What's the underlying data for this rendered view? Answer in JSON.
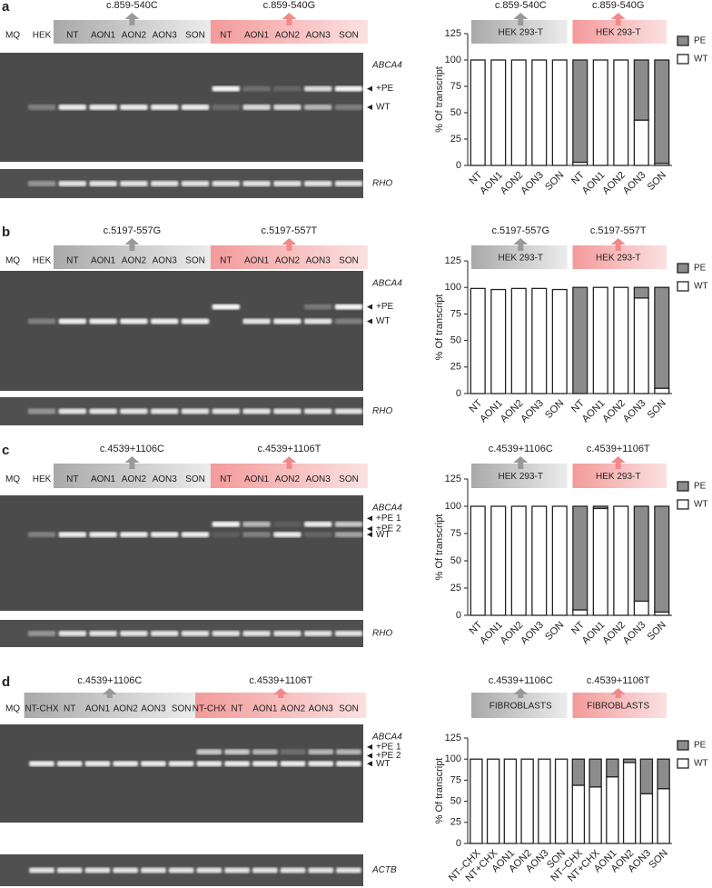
{
  "gels": [
    {
      "letter": "a",
      "lanes": [
        "MQ",
        "HEK",
        "NT",
        "AON1",
        "AON2",
        "AON3",
        "SON",
        "NT",
        "AON1",
        "AON2",
        "AON3",
        "SON"
      ],
      "groups": [
        "c.859-540C",
        "c.859-540G"
      ],
      "gene": "ABCA4",
      "markers": [
        "+PE",
        "WT"
      ],
      "control": "RHO"
    },
    {
      "letter": "b",
      "lanes": [
        "MQ",
        "HEK",
        "NT",
        "AON1",
        "AON2",
        "AON3",
        "SON",
        "NT",
        "AON1",
        "AON2",
        "AON3",
        "SON"
      ],
      "groups": [
        "c.5197-557G",
        "c.5197-557T"
      ],
      "gene": "ABCA4",
      "markers": [
        "+PE",
        "WT"
      ],
      "control": "RHO"
    },
    {
      "letter": "c",
      "lanes": [
        "MQ",
        "HEK",
        "NT",
        "AON1",
        "AON2",
        "AON3",
        "SON",
        "NT",
        "AON1",
        "AON2",
        "AON3",
        "SON"
      ],
      "groups": [
        "c.4539+1106C",
        "c.4539+1106T"
      ],
      "gene": "ABCA4",
      "markers": [
        "+PE 1",
        "+PE 2",
        "WT"
      ],
      "control": "RHO"
    },
    {
      "letter": "d",
      "lanes": [
        "MQ",
        "NT-CHX",
        "NT",
        "AON1",
        "AON2",
        "AON3",
        "SON",
        "NT-CHX",
        "NT",
        "AON1",
        "AON2",
        "AON3",
        "SON"
      ],
      "groups": [
        "c.4539+1106C",
        "c.4539+1106T"
      ],
      "gene": "ABCA4",
      "markers": [
        "+PE 1",
        "+PE 2",
        "WT"
      ],
      "control": "ACTB"
    }
  ],
  "chart_data": [
    {
      "type": "bar",
      "stacked": true,
      "ylabel": "% Of transcript",
      "categories": [
        "NT",
        "AON1",
        "AON2",
        "AON3",
        "SON",
        "NT",
        "AON1",
        "AON2",
        "AON3",
        "SON"
      ],
      "groups": [
        {
          "label": "c.859-540C",
          "name": "HEK 293-T"
        },
        {
          "label": "c.859-540G",
          "name": "HEK 293-T"
        }
      ],
      "series": [
        {
          "name": "PE",
          "color": "#8c8c8c",
          "values": [
            0,
            0,
            0,
            0,
            0,
            97,
            0,
            0,
            57,
            98
          ]
        },
        {
          "name": "WT",
          "color": "#ffffff",
          "values": [
            100,
            100,
            100,
            100,
            100,
            3,
            100,
            100,
            43,
            2
          ]
        }
      ],
      "ylim": [
        0,
        125
      ],
      "yticks": [
        0,
        25,
        50,
        75,
        100,
        125
      ],
      "legend": "right"
    },
    {
      "type": "bar",
      "stacked": true,
      "ylabel": "% Of transcript",
      "categories": [
        "NT",
        "AON1",
        "AON2",
        "AON3",
        "SON",
        "NT",
        "AON1",
        "AON2",
        "AON3",
        "SON"
      ],
      "groups": [
        {
          "label": "c.5197-557G",
          "name": "HEK 293-T"
        },
        {
          "label": "c.5197-557T",
          "name": "HEK 293-T"
        }
      ],
      "series": [
        {
          "name": "PE",
          "color": "#8c8c8c",
          "values": [
            0,
            0,
            0,
            0,
            0,
            100,
            0,
            0,
            10,
            95
          ]
        },
        {
          "name": "WT",
          "color": "#ffffff",
          "values": [
            99,
            98,
            99,
            99,
            98,
            0,
            100,
            100,
            90,
            5
          ]
        }
      ],
      "ylim": [
        0,
        125
      ],
      "yticks": [
        0,
        25,
        50,
        75,
        100,
        125
      ],
      "legend": "right"
    },
    {
      "type": "bar",
      "stacked": true,
      "ylabel": "% Of transcript",
      "categories": [
        "NT",
        "AON1",
        "AON2",
        "AON3",
        "SON",
        "NT",
        "AON1",
        "AON2",
        "AON3",
        "SON"
      ],
      "groups": [
        {
          "label": "c.4539+1106C",
          "name": "HEK 293-T"
        },
        {
          "label": "c.4539+1106T",
          "name": "HEK 293-T"
        }
      ],
      "series": [
        {
          "name": "PE",
          "color": "#8c8c8c",
          "values": [
            0,
            0,
            0,
            0,
            0,
            95,
            2,
            0,
            87,
            97
          ]
        },
        {
          "name": "WT",
          "color": "#ffffff",
          "values": [
            100,
            100,
            100,
            100,
            100,
            5,
            98,
            100,
            13,
            3
          ]
        }
      ],
      "ylim": [
        0,
        125
      ],
      "yticks": [
        0,
        25,
        50,
        75,
        100,
        125
      ],
      "legend": "right"
    },
    {
      "type": "bar",
      "stacked": true,
      "ylabel": "% Of transcript",
      "categories": [
        "NT–CHX",
        "NT+CHX",
        "AON1",
        "AON2",
        "AON3",
        "SON",
        "NT–CHX",
        "NT+CHX",
        "AON1",
        "AON2",
        "AON3",
        "SON"
      ],
      "groups": [
        {
          "label": "c.4539+1106C",
          "name": "FIBROBLASTS"
        },
        {
          "label": "c.4539+1106T",
          "name": "FIBROBLASTS"
        }
      ],
      "series": [
        {
          "name": "PE",
          "color": "#8c8c8c",
          "values": [
            0,
            0,
            0,
            0,
            0,
            0,
            31,
            33,
            21,
            4,
            41,
            35
          ]
        },
        {
          "name": "WT",
          "color": "#ffffff",
          "values": [
            100,
            100,
            100,
            100,
            100,
            100,
            69,
            67,
            79,
            96,
            59,
            65
          ]
        }
      ],
      "ylim": [
        0,
        125
      ],
      "yticks": [
        0,
        25,
        50,
        75,
        100,
        125
      ],
      "legend": "right"
    }
  ]
}
